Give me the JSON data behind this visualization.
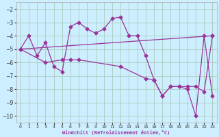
{
  "xlabel": "Windchill (Refroidissement éolien,°C)",
  "bg_color": "#cceeff",
  "grid_color": "#aaccbb",
  "line_color": "#993399",
  "xlim": [
    -0.5,
    23.5
  ],
  "ylim": [
    -10.5,
    -1.5
  ],
  "yticks": [
    -2,
    -3,
    -4,
    -5,
    -6,
    -7,
    -8,
    -9,
    -10
  ],
  "xticks": [
    0,
    1,
    2,
    3,
    4,
    5,
    6,
    7,
    8,
    9,
    10,
    11,
    12,
    13,
    14,
    15,
    16,
    17,
    18,
    19,
    20,
    21,
    22,
    23
  ],
  "line1_x": [
    0,
    1,
    2,
    3,
    4,
    5,
    6,
    7,
    8,
    9,
    10,
    11,
    12,
    13,
    14,
    15,
    16,
    17,
    18,
    19,
    20,
    21,
    22,
    23
  ],
  "line1_y": [
    -5.0,
    -4.0,
    -5.5,
    -4.5,
    -6.3,
    -6.7,
    -3.3,
    -3.0,
    -3.5,
    -3.8,
    -3.5,
    -2.7,
    -2.6,
    -4.0,
    -4.0,
    -5.5,
    -7.3,
    -8.5,
    -7.8,
    -7.8,
    -8.0,
    -10.0,
    -4.0,
    -8.5
  ],
  "line2_x": [
    0,
    3,
    5,
    6,
    7,
    12,
    15,
    16,
    17,
    18,
    19,
    20,
    21,
    22,
    23
  ],
  "line2_y": [
    -5.0,
    -6.0,
    -5.8,
    -5.8,
    -5.8,
    -6.3,
    -7.2,
    -7.3,
    -8.5,
    -7.8,
    -7.8,
    -7.8,
    -7.8,
    -8.2,
    -4.0
  ],
  "line3_x": [
    0,
    23
  ],
  "line3_y": [
    -5.0,
    -4.0
  ],
  "markersize": 2.5,
  "linewidth": 0.9
}
